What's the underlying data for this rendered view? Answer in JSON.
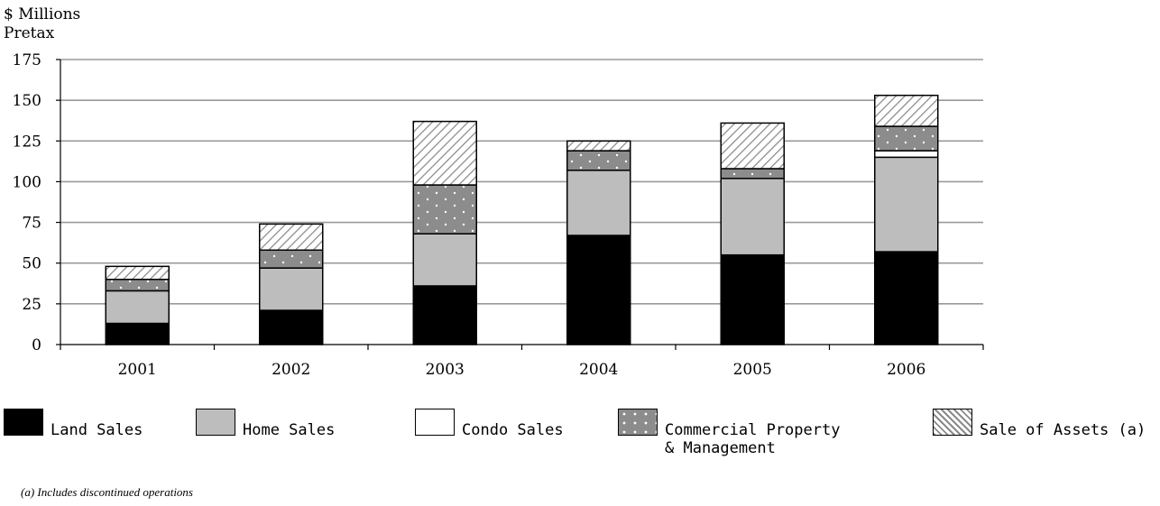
{
  "chart_data": {
    "type": "bar",
    "stacked": true,
    "ylabel_lines": [
      "$ Millions",
      "Pretax"
    ],
    "categories": [
      "2001",
      "2002",
      "2003",
      "2004",
      "2005",
      "2006"
    ],
    "ylim": [
      0,
      175
    ],
    "yticks": [
      0,
      25,
      50,
      75,
      100,
      125,
      150,
      175
    ],
    "grid": true,
    "series": [
      {
        "name": "Land Sales",
        "values": [
          13,
          21,
          36,
          67,
          55,
          57
        ]
      },
      {
        "name": "Home Sales",
        "values": [
          20,
          26,
          32,
          40,
          47,
          58
        ]
      },
      {
        "name": "Condo Sales",
        "values": [
          0,
          0,
          0,
          0,
          0,
          4
        ]
      },
      {
        "name": "Commercial Property & Management",
        "values": [
          7,
          11,
          30,
          12,
          6,
          15
        ]
      },
      {
        "name": "Sale of Assets (a)",
        "values": [
          8,
          16,
          39,
          6,
          28,
          19
        ]
      }
    ],
    "legend_position": "bottom",
    "footnote": "(a) Includes discontinued operations"
  },
  "series_styles": [
    {
      "fill": "#000000"
    },
    {
      "fill": "#bdbdbd"
    },
    {
      "fill": "#ffffff"
    },
    {
      "fill": "#8c8c8c",
      "dots": true
    },
    {
      "fill": "#ffffff",
      "hatch": true
    }
  ]
}
